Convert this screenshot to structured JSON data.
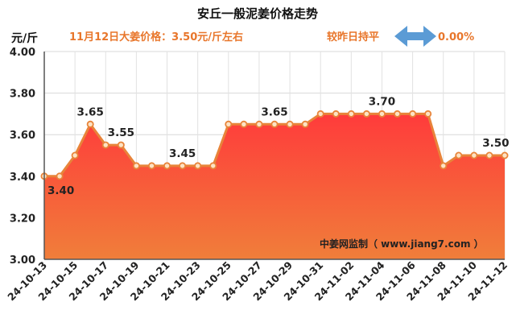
{
  "header": {
    "title": "安丘一般泥姜价格走势",
    "unit": "元/斤",
    "price_note": "11月12日大姜价格：3.50元/斤左右",
    "compare_label": "较昨日持平",
    "change_pct": "0.00%"
  },
  "watermark": "中姜网监制（ www.jiang7.com ）",
  "colors": {
    "accent_orange": "#e8762b",
    "line": "#e8843a",
    "area_top": "#ff3b3b",
    "area_bottom": "#f07e3a",
    "arrow": "#5b9bd5",
    "grid": "#d8d8d8"
  },
  "chart_data": {
    "type": "area",
    "title": "安丘一般泥姜价格走势",
    "ylabel": "元/斤",
    "ylim": [
      3.0,
      4.0
    ],
    "yticks": [
      "3.00",
      "3.20",
      "3.40",
      "3.60",
      "3.80",
      "4.00"
    ],
    "xticks": [
      "24-10-13",
      "24-10-15",
      "24-10-17",
      "24-10-19",
      "24-10-21",
      "24-10-23",
      "24-10-25",
      "24-10-27",
      "24-10-29",
      "24-10-31",
      "24-11-02",
      "24-11-04",
      "24-11-06",
      "24-11-08",
      "24-11-10",
      "24-11-12"
    ],
    "x": [
      "24-10-13",
      "24-10-14",
      "24-10-15",
      "24-10-16",
      "24-10-17",
      "24-10-18",
      "24-10-19",
      "24-10-20",
      "24-10-21",
      "24-10-22",
      "24-10-23",
      "24-10-24",
      "24-10-25",
      "24-10-26",
      "24-10-27",
      "24-10-28",
      "24-10-29",
      "24-10-30",
      "24-10-31",
      "24-11-01",
      "24-11-02",
      "24-11-03",
      "24-11-04",
      "24-11-05",
      "24-11-06",
      "24-11-07",
      "24-11-08",
      "24-11-09",
      "24-11-10",
      "24-11-11",
      "24-11-12"
    ],
    "values": [
      3.4,
      3.4,
      3.5,
      3.65,
      3.55,
      3.55,
      3.45,
      3.45,
      3.45,
      3.45,
      3.45,
      3.45,
      3.65,
      3.65,
      3.65,
      3.65,
      3.65,
      3.65,
      3.7,
      3.7,
      3.7,
      3.7,
      3.7,
      3.7,
      3.7,
      3.7,
      3.45,
      3.5,
      3.5,
      3.5,
      3.5
    ],
    "data_labels": [
      {
        "index": 0,
        "text": "3.40",
        "pos": "below"
      },
      {
        "index": 3,
        "text": "3.65",
        "pos": "above"
      },
      {
        "index": 5,
        "text": "3.55",
        "pos": "above"
      },
      {
        "index": 9,
        "text": "3.45",
        "pos": "above"
      },
      {
        "index": 15,
        "text": "3.65",
        "pos": "above"
      },
      {
        "index": 22,
        "text": "3.70",
        "pos": "above"
      },
      {
        "index": 29,
        "text": "3.50",
        "pos": "above"
      }
    ],
    "grid": true
  }
}
